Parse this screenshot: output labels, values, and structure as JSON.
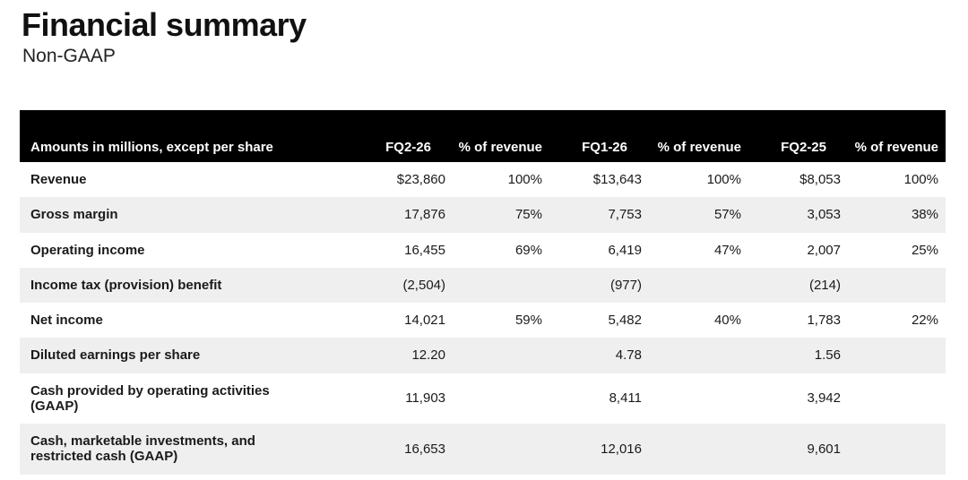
{
  "page": {
    "title": "Financial summary",
    "subtitle": "Non-GAAP"
  },
  "table": {
    "header": {
      "label": "Amounts in millions, except per share",
      "columns": [
        "FQ2-26",
        "% of revenue",
        "FQ1-26",
        "% of revenue",
        "FQ2-25",
        "% of revenue"
      ]
    },
    "rows": [
      {
        "label": "Revenue",
        "values": [
          "$23,860",
          "100%",
          "$13,643",
          "100%",
          "$8,053",
          "100%"
        ]
      },
      {
        "label": "Gross margin",
        "values": [
          "17,876",
          "75%",
          "7,753",
          "57%",
          "3,053",
          "38%"
        ]
      },
      {
        "label": "Operating income",
        "values": [
          "16,455",
          "69%",
          "6,419",
          "47%",
          "2,007",
          "25%"
        ]
      },
      {
        "label": "Income tax (provision) benefit",
        "values": [
          "(2,504)",
          "",
          "(977)",
          "",
          "(214)",
          ""
        ]
      },
      {
        "label": "Net income",
        "values": [
          "14,021",
          "59%",
          "5,482",
          "40%",
          "1,783",
          "22%"
        ]
      },
      {
        "label": "Diluted earnings per share",
        "values": [
          "12.20",
          "",
          "4.78",
          "",
          "1.56",
          ""
        ]
      },
      {
        "label": "Cash provided by operating activities (GAAP)",
        "values": [
          "11,903",
          "",
          "8,411",
          "",
          "3,942",
          ""
        ]
      },
      {
        "label": "Cash, marketable investments, and restricted cash (GAAP)",
        "values": [
          "16,653",
          "",
          "12,016",
          "",
          "9,601",
          ""
        ]
      }
    ]
  },
  "colors": {
    "header_bg": "#000000",
    "header_text": "#ffffff",
    "row_stripe": "#efefef",
    "text": "#1a1a1a",
    "background": "#ffffff"
  }
}
